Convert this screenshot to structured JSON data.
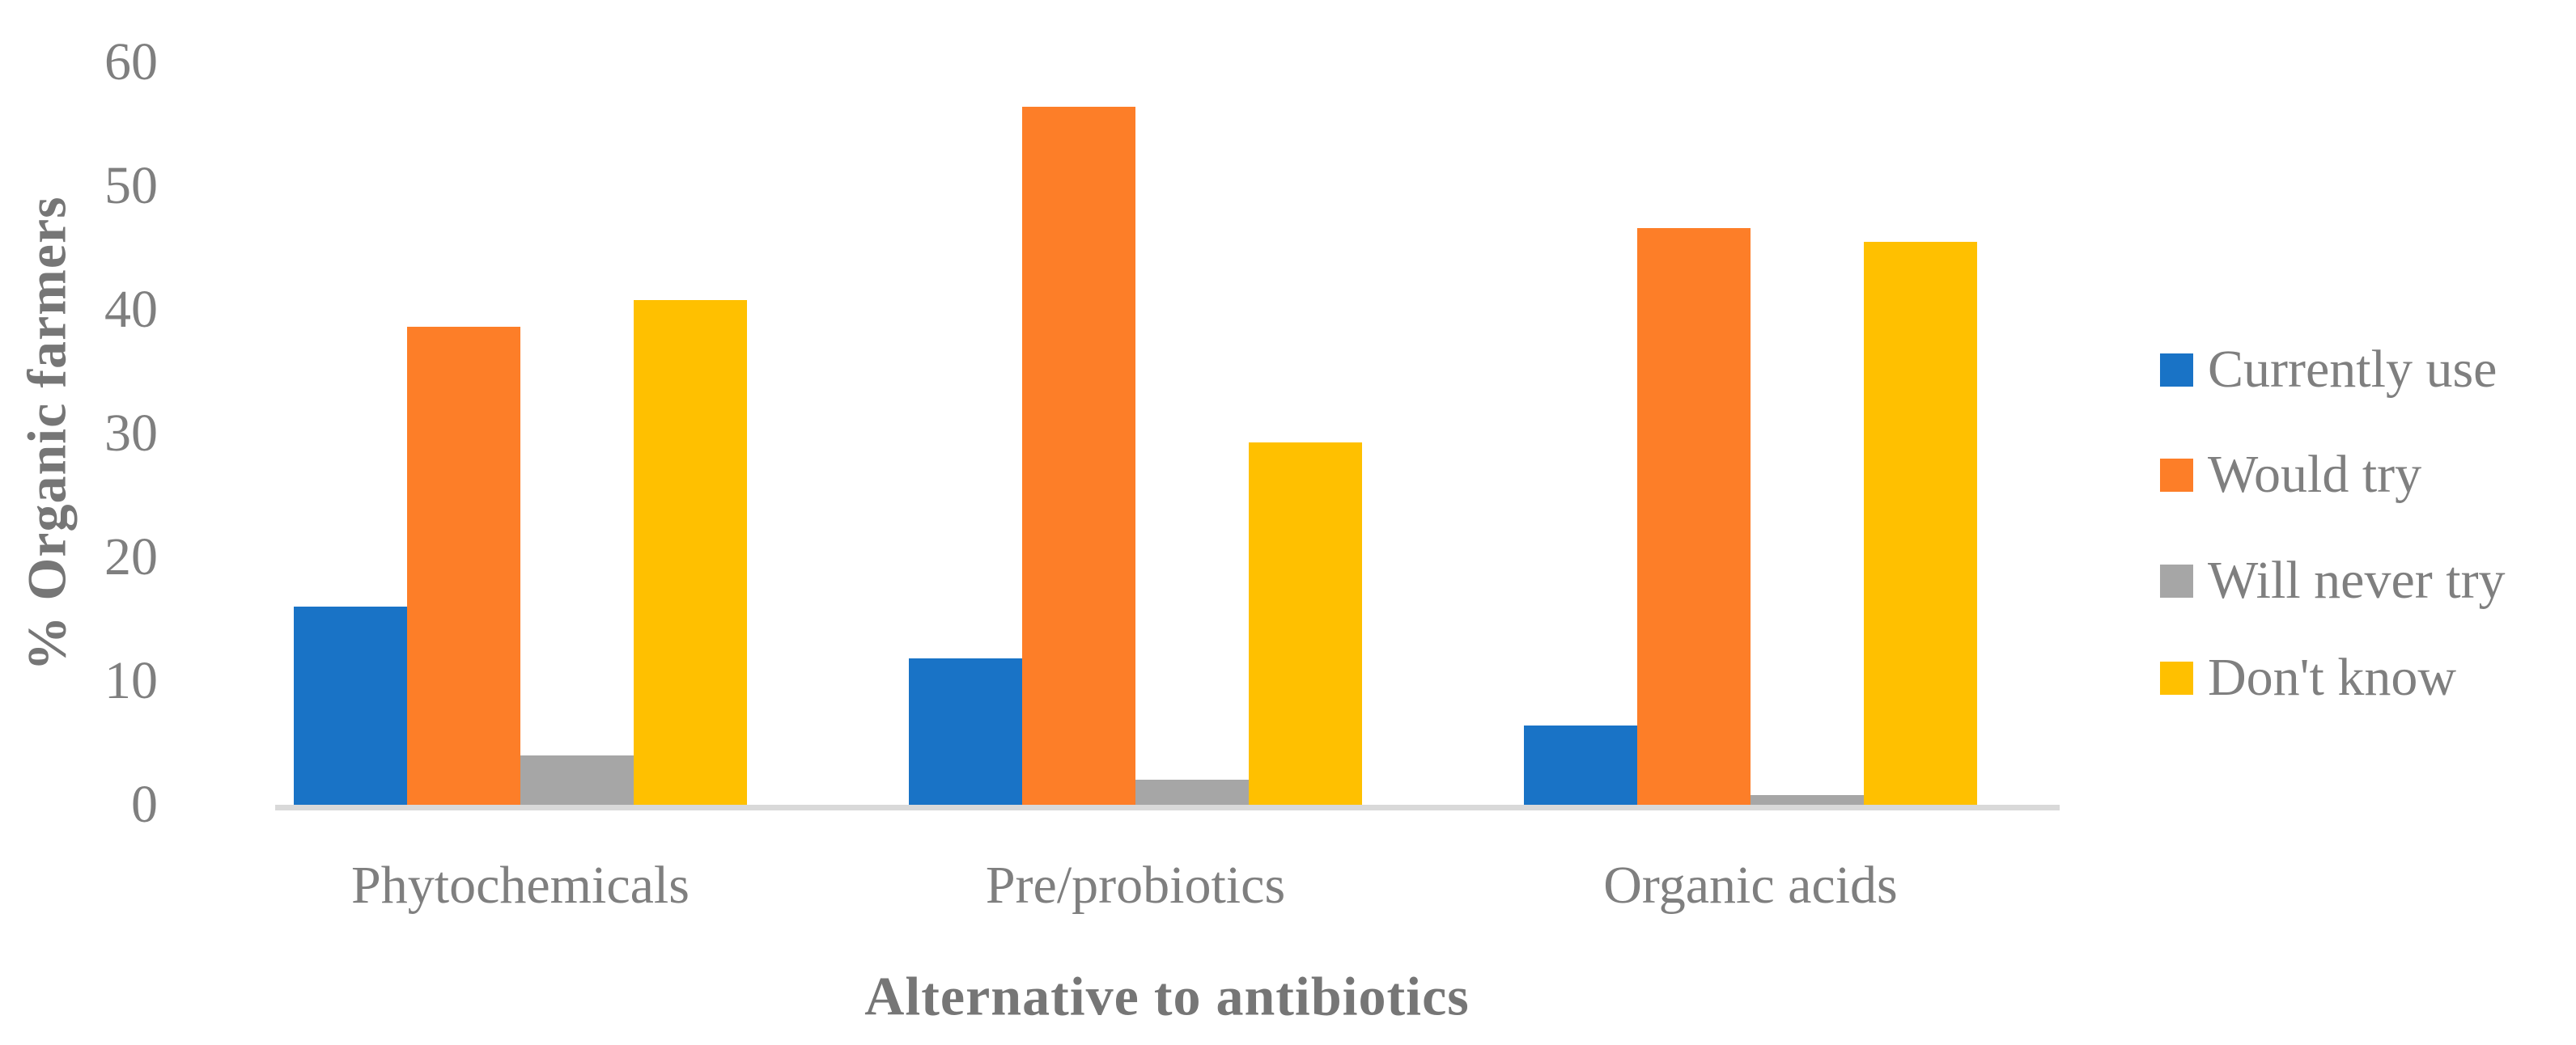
{
  "chart_data": {
    "type": "bar",
    "title": "",
    "categories": [
      "Phytochemicals",
      "Pre/probiotics",
      "Organic acids"
    ],
    "series": [
      {
        "name": "Currently use",
        "color": "#1973C6",
        "values": [
          16.0,
          11.8,
          6.4
        ]
      },
      {
        "name": "Would try",
        "color": "#FD7E28",
        "values": [
          38.6,
          56.4,
          46.6
        ]
      },
      {
        "name": "Will never try",
        "color": "#A6A6A6",
        "values": [
          4.0,
          2.0,
          0.8
        ]
      },
      {
        "name": "Don't know",
        "color": "#FFC000",
        "values": [
          40.8,
          29.3,
          45.5
        ]
      }
    ],
    "xlabel": "Alternative to antibiotics",
    "ylabel": "% Organic farmers",
    "ylim": [
      0,
      60
    ],
    "yticks": [
      0,
      10,
      20,
      30,
      40,
      50,
      60
    ],
    "grid": false,
    "legend_position": "right",
    "colors": {
      "axis_line": "#D9D9D9",
      "tick_text": "#7F7F7F",
      "title_text": "#767676"
    }
  }
}
